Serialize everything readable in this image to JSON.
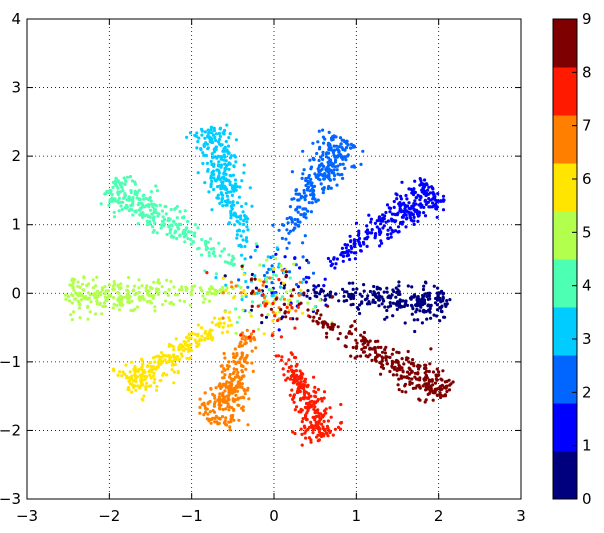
{
  "chart_data": {
    "type": "scatter",
    "title": "",
    "xlabel": "",
    "ylabel": "",
    "xlim": [
      -3,
      3
    ],
    "ylim": [
      -3,
      4
    ],
    "xticks": [
      "−3",
      "−2",
      "−1",
      "0",
      "1",
      "2",
      "3"
    ],
    "yticks": [
      "−3",
      "−2",
      "−1",
      "0",
      "1",
      "2",
      "3",
      "4"
    ],
    "grid": true,
    "grid_style": "dotted",
    "colormap": "jet",
    "colorbar": {
      "ticks": [
        "0",
        "1",
        "2",
        "3",
        "4",
        "5",
        "6",
        "7",
        "8",
        "9"
      ],
      "colors": [
        "#00007f",
        "#0000ff",
        "#0066ff",
        "#00ccff",
        "#4dffb2",
        "#b2ff4d",
        "#ffe500",
        "#ff7f00",
        "#ff1a00",
        "#7f0000"
      ]
    },
    "clusters": [
      {
        "label": 0,
        "color": "#00007f",
        "start": [
          0.4,
          0.0
        ],
        "tip": [
          2.1,
          -0.15
        ],
        "count": 260
      },
      {
        "label": 1,
        "color": "#0000ff",
        "start": [
          0.65,
          0.4
        ],
        "tip": [
          1.95,
          1.5
        ],
        "count": 300
      },
      {
        "label": 2,
        "color": "#0066ff",
        "start": [
          0.05,
          0.7
        ],
        "tip": [
          0.85,
          2.25
        ],
        "count": 280
      },
      {
        "label": 3,
        "color": "#00ccff",
        "start": [
          -0.3,
          0.5
        ],
        "tip": [
          -0.8,
          2.4
        ],
        "count": 280
      },
      {
        "label": 4,
        "color": "#4dffb2",
        "start": [
          -0.35,
          0.35
        ],
        "tip": [
          -2.0,
          1.55
        ],
        "count": 280
      },
      {
        "label": 5,
        "color": "#b2ff4d",
        "start": [
          -0.3,
          0.02
        ],
        "tip": [
          -2.5,
          -0.05
        ],
        "count": 260
      },
      {
        "label": 6,
        "color": "#ffe500",
        "start": [
          -0.5,
          -0.35
        ],
        "tip": [
          -1.8,
          -1.35
        ],
        "count": 250
      },
      {
        "label": 7,
        "color": "#ff7f00",
        "start": [
          -0.25,
          -0.45
        ],
        "tip": [
          -0.7,
          -1.9
        ],
        "count": 260
      },
      {
        "label": 8,
        "color": "#ff1a00",
        "start": [
          0.1,
          -0.75
        ],
        "tip": [
          0.6,
          -2.1
        ],
        "count": 240
      },
      {
        "label": 9,
        "color": "#7f0000",
        "start": [
          0.35,
          -0.25
        ],
        "tip": [
          2.1,
          -1.45
        ],
        "count": 300
      }
    ]
  }
}
